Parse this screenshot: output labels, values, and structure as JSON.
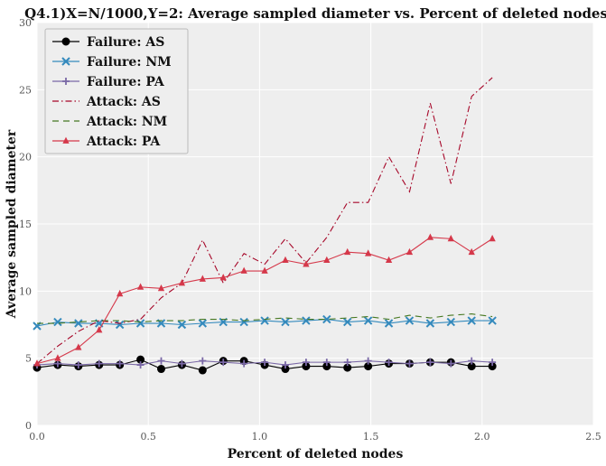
{
  "chart_data": {
    "type": "line",
    "title": "Q4.1)X=N/1000,Y=2: Average sampled diameter vs. Percent of deleted nodes",
    "xlabel": "Percent of deleted nodes",
    "ylabel": "Average sampled diameter",
    "xlim": [
      0,
      2.5
    ],
    "ylim": [
      0,
      30
    ],
    "xticks": [
      "0.0",
      "0.5",
      "1.0",
      "1.5",
      "2.0",
      "2.5"
    ],
    "yticks": [
      "0",
      "5",
      "10",
      "15",
      "20",
      "25",
      "30"
    ],
    "grid": true,
    "legend_position": "top-left",
    "x": [
      0.0,
      0.093,
      0.186,
      0.279,
      0.372,
      0.465,
      0.558,
      0.651,
      0.744,
      0.837,
      0.93,
      1.023,
      1.116,
      1.209,
      1.302,
      1.395,
      1.488,
      1.581,
      1.674,
      1.767,
      1.86,
      1.953,
      2.046
    ],
    "series": [
      {
        "name": "Failure: AS",
        "color": "#000000",
        "marker": "circle",
        "linestyle": "solid",
        "values": [
          4.3,
          4.5,
          4.4,
          4.5,
          4.5,
          4.9,
          4.2,
          4.5,
          4.1,
          4.8,
          4.8,
          4.5,
          4.2,
          4.4,
          4.4,
          4.3,
          4.4,
          4.6,
          4.6,
          4.7,
          4.7,
          4.4,
          4.4
        ]
      },
      {
        "name": "Failure: NM",
        "color": "#348abd",
        "marker": "x",
        "linestyle": "solid",
        "values": [
          7.4,
          7.7,
          7.6,
          7.6,
          7.5,
          7.6,
          7.6,
          7.5,
          7.6,
          7.7,
          7.7,
          7.8,
          7.7,
          7.8,
          7.9,
          7.7,
          7.8,
          7.6,
          7.8,
          7.6,
          7.7,
          7.8,
          7.8
        ]
      },
      {
        "name": "Failure: PA",
        "color": "#7a68a6",
        "marker": "plus",
        "linestyle": "solid",
        "values": [
          4.5,
          4.6,
          4.5,
          4.6,
          4.6,
          4.5,
          4.8,
          4.6,
          4.8,
          4.7,
          4.6,
          4.7,
          4.5,
          4.7,
          4.7,
          4.7,
          4.8,
          4.7,
          4.6,
          4.7,
          4.6,
          4.8,
          4.7
        ]
      },
      {
        "name": "Attack: AS",
        "color": "#a60628",
        "marker": "none",
        "linestyle": "dashdot",
        "values": [
          4.6,
          5.9,
          7.0,
          7.8,
          7.6,
          7.9,
          9.5,
          10.6,
          13.8,
          10.6,
          12.8,
          12.0,
          13.9,
          12.1,
          14.0,
          16.6,
          16.6,
          20.0,
          17.4,
          24.0,
          18.0,
          24.5,
          25.9
        ]
      },
      {
        "name": "Attack: NM",
        "color": "#467821",
        "marker": "none",
        "linestyle": "dashed",
        "values": [
          7.6,
          7.6,
          7.7,
          7.8,
          7.8,
          7.7,
          7.8,
          7.8,
          7.9,
          7.9,
          7.8,
          7.9,
          8.0,
          7.9,
          7.9,
          8.0,
          8.1,
          7.9,
          8.2,
          8.0,
          8.2,
          8.3,
          8.1
        ]
      },
      {
        "name": "Attack: PA",
        "color": "#d5384a",
        "marker": "triangle",
        "linestyle": "solid",
        "values": [
          4.6,
          5.0,
          5.8,
          7.1,
          9.8,
          10.3,
          10.2,
          10.6,
          10.9,
          11.0,
          11.5,
          11.5,
          12.3,
          12.0,
          12.3,
          12.9,
          12.8,
          12.3,
          12.9,
          14.0,
          13.9,
          12.9,
          13.9
        ]
      }
    ]
  }
}
